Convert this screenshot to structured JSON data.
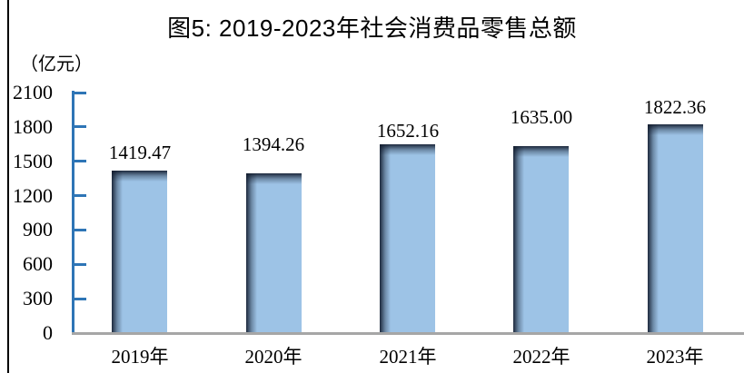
{
  "page": {
    "background_color": "#ffffff",
    "left_border_color": "#000000"
  },
  "header": {
    "title": "图5: 2019-2023年社会消费品零售总额"
  },
  "chart_data": {
    "type": "bar",
    "title": "图5: 2019-2023年社会消费品零售总额",
    "ylabel": "（亿元）",
    "xlabel": "",
    "categories": [
      "2019年",
      "2020年",
      "2021年",
      "2022年",
      "2023年"
    ],
    "values": [
      1419.47,
      1394.26,
      1652.16,
      1635.0,
      1822.36
    ],
    "value_labels": [
      "1419.47",
      "1394.26",
      "1652.16",
      "1635.00",
      "1822.36"
    ],
    "ylim": [
      0,
      2100
    ],
    "yticks": [
      0,
      300,
      600,
      900,
      1200,
      1500,
      1800,
      2100
    ],
    "grid": false,
    "legend_position": "none",
    "colors": {
      "bar_fill": "#9DC3E6",
      "bar_edge_shadow": "#121C2E",
      "axis_line": "#2E75B6",
      "baseline": "#A6A6A6",
      "text": "#000000"
    }
  }
}
